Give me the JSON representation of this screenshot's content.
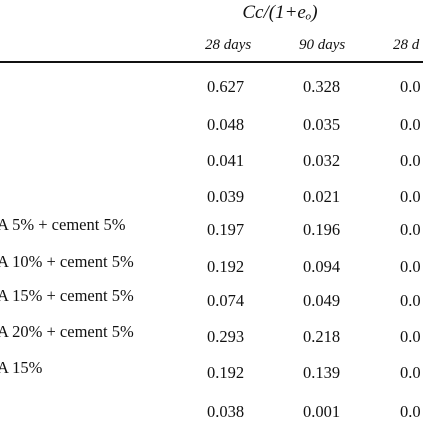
{
  "table": {
    "group_header": "Cc/(1+eₒ)",
    "columns": [
      "28 days",
      "90 days",
      "28 d"
    ],
    "row_labels": [
      "",
      "",
      "",
      "",
      "A 5% + cement 5%",
      "A 10% + cement 5%",
      "A 15% + cement 5%",
      "A 20% + cement 5%",
      "A 15%",
      ""
    ],
    "col1": [
      "0.627",
      "0.048",
      "0.041",
      "0.039",
      "0.197",
      "0.192",
      "0.074",
      "0.293",
      "0.192",
      "0.038"
    ],
    "col2": [
      "0.328",
      "0.035",
      "0.032",
      "0.021",
      "0.196",
      "0.094",
      "0.049",
      "0.218",
      "0.139",
      "0.001"
    ],
    "col3": [
      "0.0",
      "0.0",
      "0.0",
      "0.0",
      "0.0",
      "0.0",
      "0.0",
      "0.0",
      "0.0",
      "0.0"
    ]
  }
}
